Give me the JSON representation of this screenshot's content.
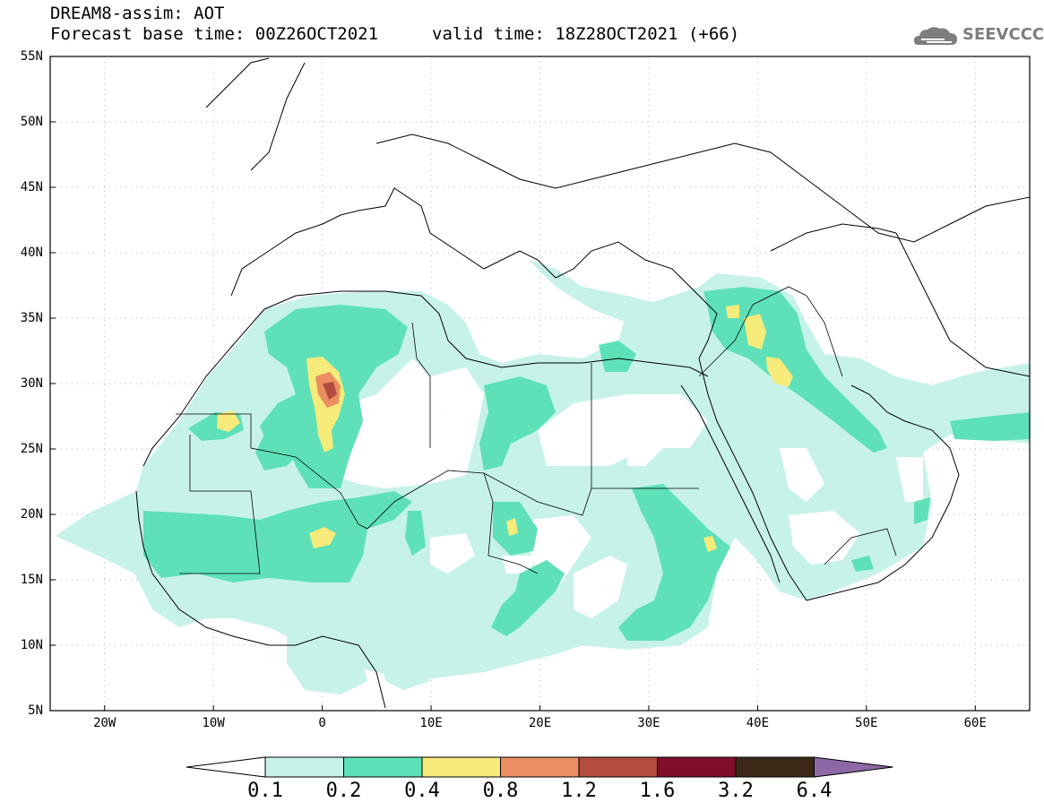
{
  "header": {
    "title_line1": "DREAM8-assim: AOT",
    "title_line2": "Forecast base time: 00Z26OCT2021",
    "valid_time": "valid time: 18Z28OCT2021 (+66)",
    "logo_text": "SEEVCCC"
  },
  "map": {
    "lat_labels": [
      "55N",
      "50N",
      "45N",
      "40N",
      "35N",
      "30N",
      "25N",
      "20N",
      "15N",
      "10N",
      "5N"
    ],
    "lon_labels": [
      "20W",
      "10W",
      "0",
      "10E",
      "20E",
      "30E",
      "40E",
      "50E",
      "60E"
    ],
    "extent": {
      "lon_min": -25,
      "lon_max": 65,
      "lat_min": 5,
      "lat_max": 55
    }
  },
  "colorbar": {
    "labels": [
      "0.1",
      "0.2",
      "0.4",
      "0.8",
      "1.2",
      "1.6",
      "3.2",
      "6.4"
    ],
    "colors": [
      "#c7f2ea",
      "#5ee1b8",
      "#f6eb7b",
      "#eb8e62",
      "#b24c3e",
      "#800d2a",
      "#3b2816",
      "#8c68a6"
    ]
  }
}
